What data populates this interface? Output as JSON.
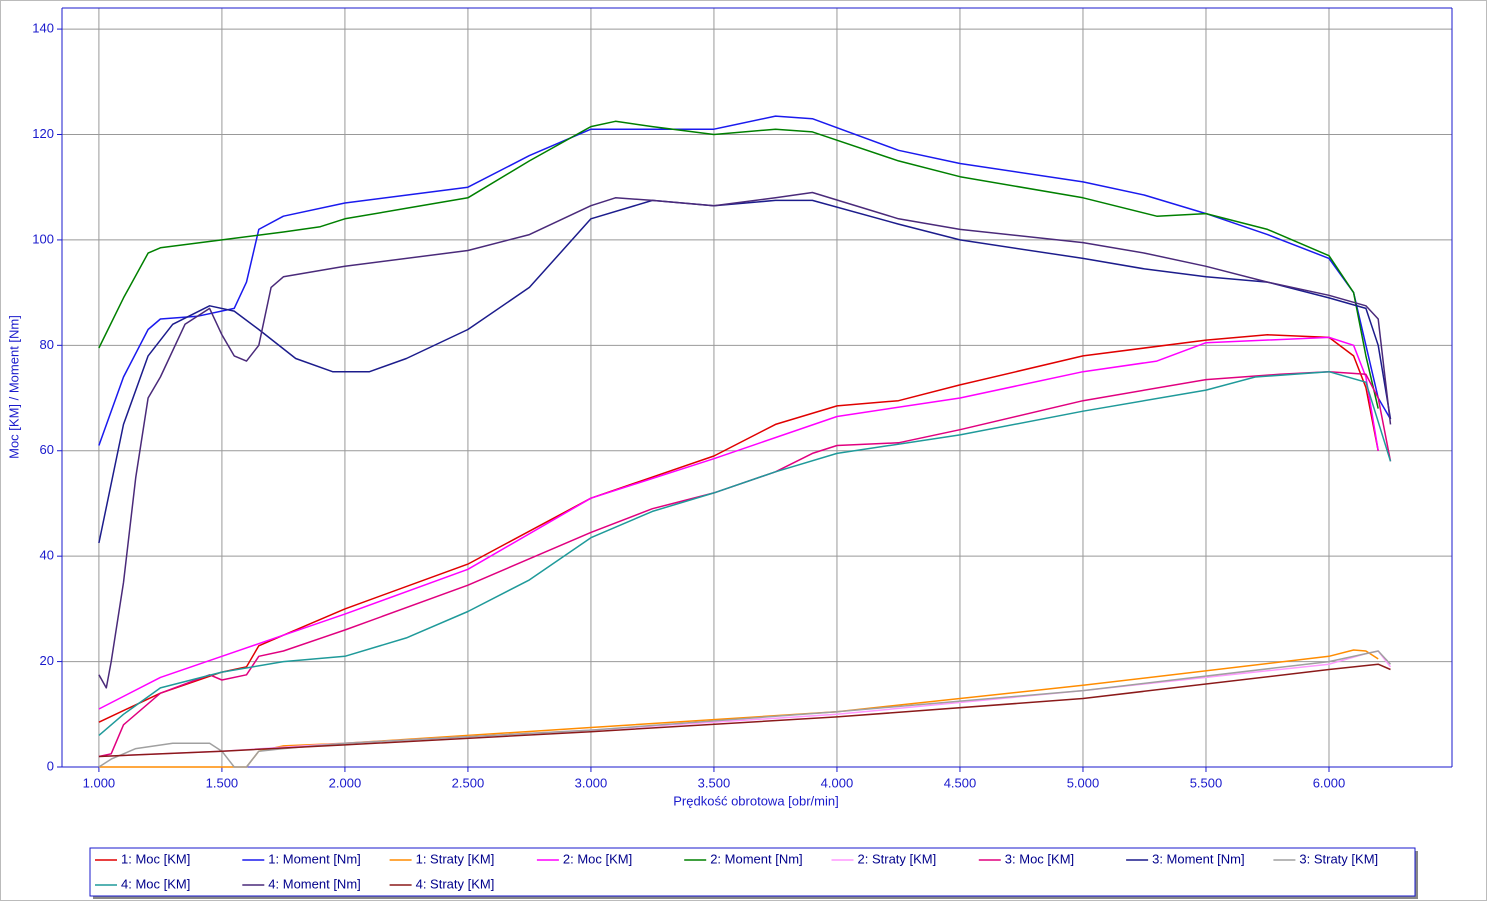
{
  "chart_data": {
    "type": "line",
    "x_label": "Prędkość obrotowa [obr/min]",
    "y_label": "Moc [KM] / Moment [Nm]",
    "xlim": [
      850,
      6500
    ],
    "ylim": [
      0,
      144
    ],
    "xticks": [
      {
        "value": 1000,
        "label": "1.000"
      },
      {
        "value": 1500,
        "label": "1.500"
      },
      {
        "value": 2000,
        "label": "2.000"
      },
      {
        "value": 2500,
        "label": "2.500"
      },
      {
        "value": 3000,
        "label": "3.000"
      },
      {
        "value": 3500,
        "label": "3.500"
      },
      {
        "value": 4000,
        "label": "4.000"
      },
      {
        "value": 4500,
        "label": "4.500"
      },
      {
        "value": 5000,
        "label": "5.000"
      },
      {
        "value": 5500,
        "label": "5.500"
      },
      {
        "value": 6000,
        "label": "6.000"
      }
    ],
    "yticks": [
      0,
      20,
      40,
      60,
      80,
      100,
      120,
      140
    ],
    "grid": true,
    "legend": "bottom",
    "series": [
      {
        "name": "1: Moc [KM]",
        "color": "#e00000",
        "x": [
          1000,
          1250,
          1500,
          1600,
          1650,
          1750,
          2000,
          2500,
          3000,
          3250,
          3500,
          3750,
          4000,
          4250,
          4500,
          5000,
          5500,
          5750,
          6000,
          6100,
          6150,
          6200
        ],
        "values": [
          8.5,
          14,
          18,
          19,
          23,
          25,
          30,
          38.5,
          51,
          55,
          59,
          65,
          68.5,
          69.5,
          72.5,
          78,
          81,
          82,
          81.5,
          78,
          72,
          60
        ]
      },
      {
        "name": "1: Moment [Nm]",
        "color": "#1a1aee",
        "x": [
          1000,
          1100,
          1200,
          1250,
          1400,
          1550,
          1600,
          1650,
          1750,
          2000,
          2250,
          2500,
          2750,
          3000,
          3250,
          3500,
          3750,
          3900,
          4250,
          4500,
          5000,
          5250,
          5500,
          5750,
          6000,
          6100,
          6150,
          6200,
          6250
        ],
        "values": [
          61,
          74,
          83,
          85,
          85.5,
          87,
          92,
          102,
          104.5,
          107,
          108.5,
          110,
          116,
          121,
          121,
          121,
          123.5,
          123,
          117,
          114.5,
          111,
          108.5,
          105,
          101,
          96.5,
          90,
          80,
          70,
          66
        ]
      },
      {
        "name": "1: Straty [KM]",
        "color": "#ff8c00",
        "x": [
          1000,
          1550,
          1600,
          1650,
          1750,
          2000,
          3000,
          4000,
          5000,
          6000,
          6100,
          6150,
          6200
        ],
        "values": [
          0,
          0,
          0,
          3,
          4,
          4.5,
          7.5,
          10.5,
          15.5,
          21,
          22.2,
          22,
          20.5
        ]
      },
      {
        "name": "2: Moc [KM]",
        "color": "#ff00ff",
        "x": [
          1000,
          1250,
          1500,
          1750,
          2000,
          2500,
          3000,
          3500,
          4000,
          4500,
          5000,
          5300,
          5500,
          6000,
          6100,
          6150,
          6200
        ],
        "values": [
          11,
          17,
          21,
          25,
          29,
          37.5,
          51,
          58.5,
          66.5,
          70,
          75,
          77,
          80.5,
          81.5,
          80,
          74,
          60
        ]
      },
      {
        "name": "2: Moment [Nm]",
        "color": "#008000",
        "x": [
          1000,
          1100,
          1200,
          1250,
          1500,
          1750,
          1900,
          2000,
          2250,
          2500,
          2750,
          3000,
          3100,
          3250,
          3500,
          3750,
          3900,
          4250,
          4500,
          5000,
          5300,
          5500,
          5750,
          6000,
          6100,
          6150,
          6200
        ],
        "values": [
          79.5,
          89,
          97.5,
          98.5,
          100,
          101.5,
          102.5,
          104,
          106,
          108,
          115,
          121.5,
          122.5,
          121.5,
          120,
          121,
          120.5,
          115,
          112,
          108,
          104.5,
          105,
          102,
          97,
          90,
          78,
          68
        ]
      },
      {
        "name": "2: Straty [KM]",
        "color": "#ff99ff",
        "x": [
          1000,
          1500,
          2000,
          3000,
          4000,
          5000,
          6000,
          6150,
          6200,
          6250
        ],
        "values": [
          2,
          3,
          4.5,
          7,
          10,
          14.5,
          19.5,
          21.5,
          22,
          19
        ]
      },
      {
        "name": "3: Moc [KM]",
        "color": "#e0007f",
        "x": [
          1000,
          1050,
          1100,
          1250,
          1450,
          1500,
          1600,
          1650,
          1750,
          2000,
          2500,
          3000,
          3250,
          3500,
          3750,
          3900,
          4000,
          4250,
          4500,
          5000,
          5500,
          5800,
          6000,
          6150,
          6200,
          6250
        ],
        "values": [
          2,
          2.5,
          8,
          14,
          17.5,
          16.5,
          17.5,
          21,
          22,
          26,
          34.5,
          44.5,
          49,
          52,
          56,
          59.5,
          61,
          61.5,
          64,
          69.5,
          73.5,
          74.5,
          75,
          74.5,
          70,
          58
        ]
      },
      {
        "name": "3: Moment [Nm]",
        "color": "#1c1c8c",
        "x": [
          1000,
          1100,
          1200,
          1300,
          1450,
          1550,
          1650,
          1800,
          1950,
          2100,
          2250,
          2500,
          2750,
          3000,
          3250,
          3500,
          3750,
          3900,
          4250,
          4500,
          5000,
          5250,
          5500,
          5750,
          6000,
          6150,
          6200,
          6250
        ],
        "values": [
          42.5,
          65,
          78,
          84,
          87.5,
          86.5,
          83,
          77.5,
          75,
          75,
          77.5,
          83,
          91,
          104,
          107.5,
          106.5,
          107.5,
          107.5,
          103,
          100,
          96.5,
          94.5,
          93,
          92,
          89,
          87,
          80,
          66
        ]
      },
      {
        "name": "3: Straty [KM]",
        "color": "#a0a0a0",
        "x": [
          1000,
          1050,
          1150,
          1300,
          1450,
          1500,
          1550,
          1600,
          1650,
          1750,
          2000,
          3000,
          4000,
          5000,
          6000,
          6200,
          6250
        ],
        "values": [
          0,
          1.5,
          3.5,
          4.5,
          4.5,
          3,
          0,
          0,
          3,
          3.5,
          4.5,
          7,
          10.5,
          14.5,
          20,
          22,
          19.5
        ]
      },
      {
        "name": "4: Moc [KM]",
        "color": "#1f9a9a",
        "x": [
          1000,
          1100,
          1250,
          1500,
          1750,
          2000,
          2250,
          2500,
          2750,
          3000,
          3250,
          3500,
          3750,
          4000,
          4500,
          5000,
          5500,
          5700,
          6000,
          6150,
          6250
        ],
        "values": [
          6,
          10,
          15,
          18,
          20,
          21,
          24.5,
          29.5,
          35.5,
          43.5,
          48.5,
          52,
          56,
          59.5,
          63,
          67.5,
          71.5,
          74,
          75,
          73,
          58
        ]
      },
      {
        "name": "4: Moment [Nm]",
        "color": "#4a2a7a",
        "x": [
          1000,
          1030,
          1050,
          1100,
          1150,
          1200,
          1250,
          1350,
          1450,
          1500,
          1550,
          1600,
          1650,
          1700,
          1750,
          2000,
          2500,
          2750,
          3000,
          3100,
          3250,
          3500,
          3750,
          3900,
          4250,
          4500,
          5000,
          5250,
          5500,
          5750,
          6000,
          6150,
          6200,
          6250
        ],
        "values": [
          17.5,
          15,
          20,
          35,
          55,
          70,
          74,
          84,
          87,
          82,
          78,
          77,
          80,
          91,
          93,
          95,
          98,
          101,
          106.5,
          108,
          107.5,
          106.5,
          108,
          109,
          104,
          102,
          99.5,
          97.5,
          95,
          92,
          89.5,
          87.5,
          85,
          65
        ]
      },
      {
        "name": "4: Straty [KM]",
        "color": "#8b1a1a",
        "x": [
          1000,
          1500,
          2000,
          3000,
          4000,
          5000,
          6000,
          6200,
          6250
        ],
        "values": [
          2,
          3,
          4.2,
          6.7,
          9.5,
          13,
          18.5,
          19.5,
          18.5
        ]
      }
    ]
  }
}
